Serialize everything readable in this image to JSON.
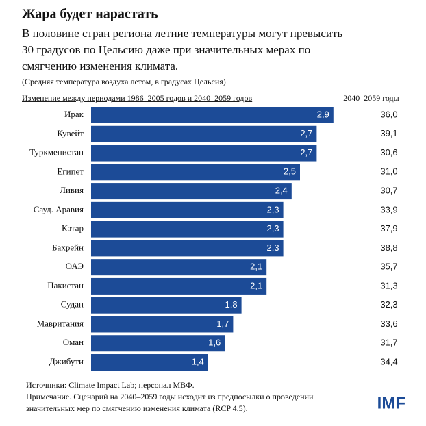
{
  "chart_data": {
    "type": "bar",
    "orientation": "horizontal",
    "title": "Жара будет нарастать",
    "subtitle_lines": [
      "В половине стран региона летние температуры могут превысить",
      "30 градусов по Цельсию даже при значительных мерах по",
      "смягчению изменения климата."
    ],
    "note": "(Средняя температура воздуха летом, в градусах Цельсия)",
    "bar_header": "Изменение между периодами 1986–2005 годов и 2040–2059 годов",
    "categories": [
      "Ирак",
      "Кувейт",
      "Туркменистан",
      "Египет",
      "Ливия",
      "Сауд. Аравия",
      "Катар",
      "Бахрейн",
      "ОАЭ",
      "Пакистан",
      "Судан",
      "Мавритания",
      "Оман",
      "Джибути"
    ],
    "values": [
      2.9,
      2.7,
      2.7,
      2.5,
      2.4,
      2.3,
      2.3,
      2.3,
      2.1,
      2.1,
      1.8,
      1.7,
      1.6,
      1.4
    ],
    "value_labels": [
      "2,9",
      "2,7",
      "2,7",
      "2,5",
      "2,4",
      "2,3",
      "2,3",
      "2,3",
      "2,1",
      "2,1",
      "1,8",
      "1,7",
      "1,6",
      "1,4"
    ],
    "color": "#1c4b97",
    "column": {
      "title": "2040–2059 годы",
      "values": [
        36.0,
        39.1,
        30.6,
        31.0,
        30.7,
        33.9,
        37.9,
        38.8,
        35.7,
        31.3,
        32.3,
        33.6,
        31.7,
        34.4
      ],
      "value_labels": [
        "36,0",
        "39,1",
        "30,6",
        "31,0",
        "30,7",
        "33,9",
        "37,9",
        "38,8",
        "35,7",
        "31,3",
        "32,3",
        "33,6",
        "31,7",
        "34,4"
      ]
    },
    "footer_lines": [
      "Источники: Climate Impact Lab; персонал МВФ.",
      "Примечание. Сценарий на 2040–2059 годы исходит из предпосылки о проведении",
      "значительных мер по смягчению изменения климата (RCP 4.5)."
    ],
    "logo": "IMF"
  }
}
